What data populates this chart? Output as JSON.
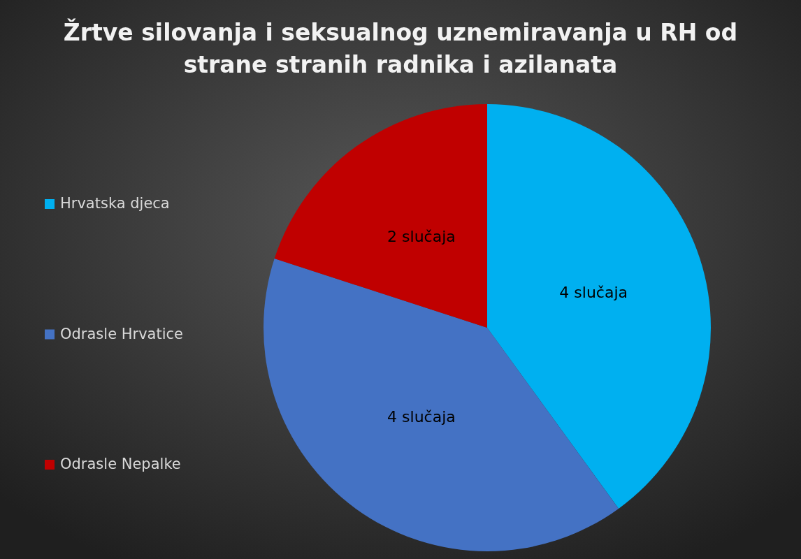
{
  "chart_data": {
    "type": "pie",
    "title": "Žrtve silovanja i seksualnog uznemiravanja u RH od strane stranih radnika i azilanata",
    "categories": [
      "Hrvatska djeca",
      "Odrasle Hrvatice",
      "Odrasle Nepalke"
    ],
    "values": [
      4,
      4,
      2
    ],
    "colors": [
      "#00b0f0",
      "#4472c4",
      "#c00000"
    ],
    "value_labels": [
      "4 slučaja",
      "4 slučaja",
      "2 slučaja"
    ],
    "legend": "left"
  }
}
